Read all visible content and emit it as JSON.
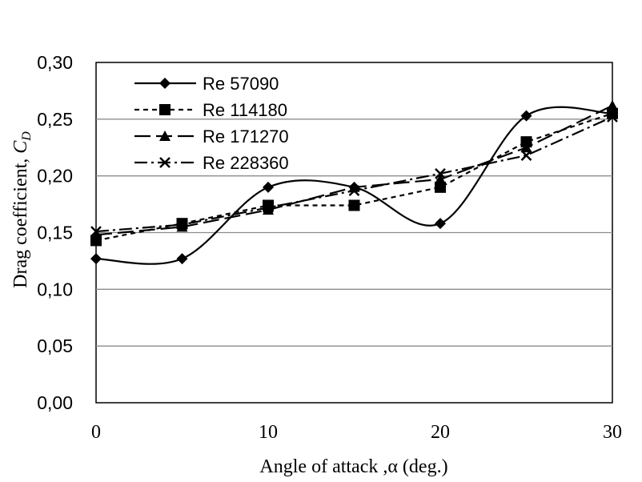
{
  "chart_data": {
    "type": "line",
    "title": "",
    "xlabel": "Angle of attack ,α (deg.)",
    "ylabel": "Drag coefficient, ",
    "ylabel_symbol": "C",
    "ylabel_subscript": "D",
    "xlim": [
      0,
      30
    ],
    "ylim": [
      0,
      0.3
    ],
    "xticks": [
      0,
      10,
      20,
      30
    ],
    "xtick_labels": [
      "0",
      "10",
      "20",
      "30"
    ],
    "yticks": [
      0,
      0.05,
      0.1,
      0.15,
      0.2,
      0.25,
      0.3
    ],
    "ytick_labels": [
      "0,00",
      "0,05",
      "0,10",
      "0,15",
      "0,20",
      "0,25",
      "0,30"
    ],
    "grid": "horizontal",
    "legend_position": "top-left",
    "x": [
      0,
      5,
      10,
      15,
      20,
      25,
      30
    ],
    "series": [
      {
        "name": "Re 57090",
        "marker": "diamond",
        "line": "solid",
        "smooth": true,
        "values": [
          0.127,
          0.127,
          0.19,
          0.19,
          0.158,
          0.253,
          0.255
        ]
      },
      {
        "name": "Re 114180",
        "marker": "square",
        "line": "short-dash",
        "smooth": false,
        "values": [
          0.143,
          0.158,
          0.174,
          0.174,
          0.19,
          0.23,
          0.255
        ]
      },
      {
        "name": "Re 171270",
        "marker": "triangle",
        "line": "long-dash",
        "smooth": false,
        "values": [
          0.148,
          0.155,
          0.17,
          0.19,
          0.197,
          0.225,
          0.262
        ]
      },
      {
        "name": "Re 228360",
        "marker": "x",
        "line": "dash-dot",
        "smooth": false,
        "values": [
          0.151,
          0.157,
          0.172,
          0.187,
          0.202,
          0.218,
          0.252
        ]
      }
    ]
  }
}
